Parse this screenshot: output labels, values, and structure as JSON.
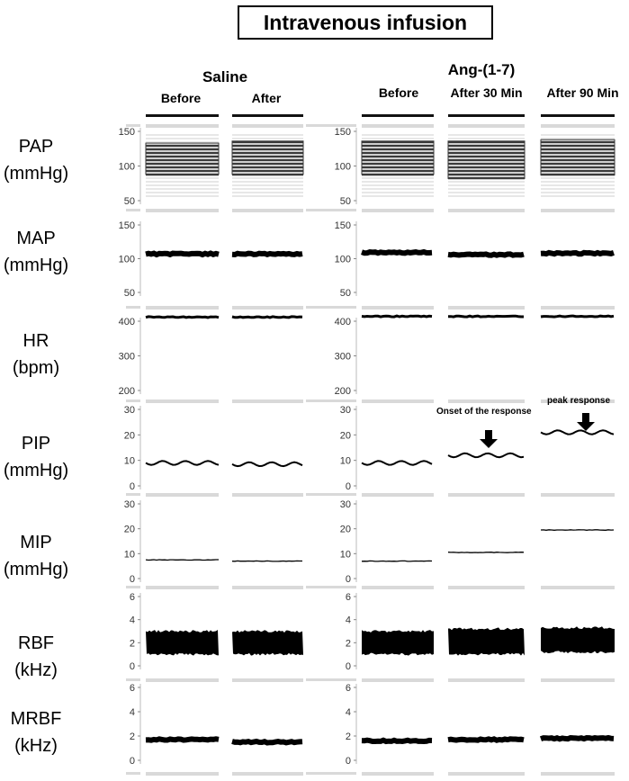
{
  "title": "Intravenous infusion",
  "groups": {
    "saline": "Saline",
    "ang": "Ang-(1-7)"
  },
  "columns": [
    "Before",
    "After",
    "Before",
    "After 30 Min",
    "After 90 Min"
  ],
  "annotations": {
    "onset": "Onset of the response",
    "peak": "peak  response"
  },
  "colors": {
    "trace": "#000000",
    "band": "#d9d9d9",
    "stripe": "#3a3a3a"
  },
  "chart_data": {
    "type": "line",
    "title": "Intravenous infusion",
    "categories": [
      "Saline Before",
      "Saline After",
      "Ang-(1-7) Before",
      "Ang-(1-7) After 30 Min",
      "Ang-(1-7) After 90 Min"
    ],
    "panels": [
      {
        "name": "PAP",
        "unit": "(mmHg)",
        "ylim": [
          50,
          150
        ],
        "ticks": [
          50,
          100,
          150
        ],
        "tick_labels": [
          "50",
          "100",
          "150"
        ],
        "style": "pulsatile",
        "low": [
          88,
          88,
          88,
          82,
          87
        ],
        "high": [
          133,
          136,
          136,
          136,
          138
        ]
      },
      {
        "name": "MAP",
        "unit": "(mmHg)",
        "ylim": [
          50,
          150
        ],
        "ticks": [
          50,
          100,
          150
        ],
        "tick_labels": [
          "50",
          "100",
          "150"
        ],
        "style": "thick",
        "values": [
          107,
          107,
          109,
          106,
          108
        ]
      },
      {
        "name": "HR",
        "unit": "(bpm)",
        "ylim": [
          200,
          400
        ],
        "ticks": [
          200,
          300,
          400
        ],
        "tick_labels": [
          "200",
          "300",
          "400"
        ],
        "style": "thin",
        "values": [
          412,
          412,
          414,
          414,
          414
        ]
      },
      {
        "name": "PIP",
        "unit": "(mmHg)",
        "ylim": [
          0,
          30
        ],
        "ticks": [
          0,
          10,
          20,
          30
        ],
        "tick_labels": [
          "0",
          "10",
          "20",
          "30"
        ],
        "style": "wavy",
        "values": [
          9,
          8.5,
          9,
          12,
          21
        ]
      },
      {
        "name": "MIP",
        "unit": "(mmHg)",
        "ylim": [
          0,
          30
        ],
        "ticks": [
          0,
          10,
          20,
          30
        ],
        "tick_labels": [
          "0",
          "10",
          "20",
          "30"
        ],
        "style": "line",
        "values": [
          7.5,
          7,
          7,
          10.5,
          19.5
        ]
      },
      {
        "name": "RBF",
        "unit": "(kHz)",
        "ylim": [
          0,
          6
        ],
        "ticks": [
          0,
          2,
          4,
          6
        ],
        "tick_labels": [
          "0",
          "2",
          "4",
          "6"
        ],
        "style": "band",
        "low": [
          1,
          1,
          1,
          1,
          1.2
        ],
        "high": [
          3,
          3,
          3,
          3.2,
          3.3
        ]
      },
      {
        "name": "MRBF",
        "unit": "(kHz)",
        "ylim": [
          0,
          6
        ],
        "ticks": [
          0,
          2,
          4,
          6
        ],
        "tick_labels": [
          "0",
          "2",
          "4",
          "6"
        ],
        "style": "thick",
        "values": [
          1.7,
          1.5,
          1.6,
          1.7,
          1.8
        ]
      }
    ]
  }
}
